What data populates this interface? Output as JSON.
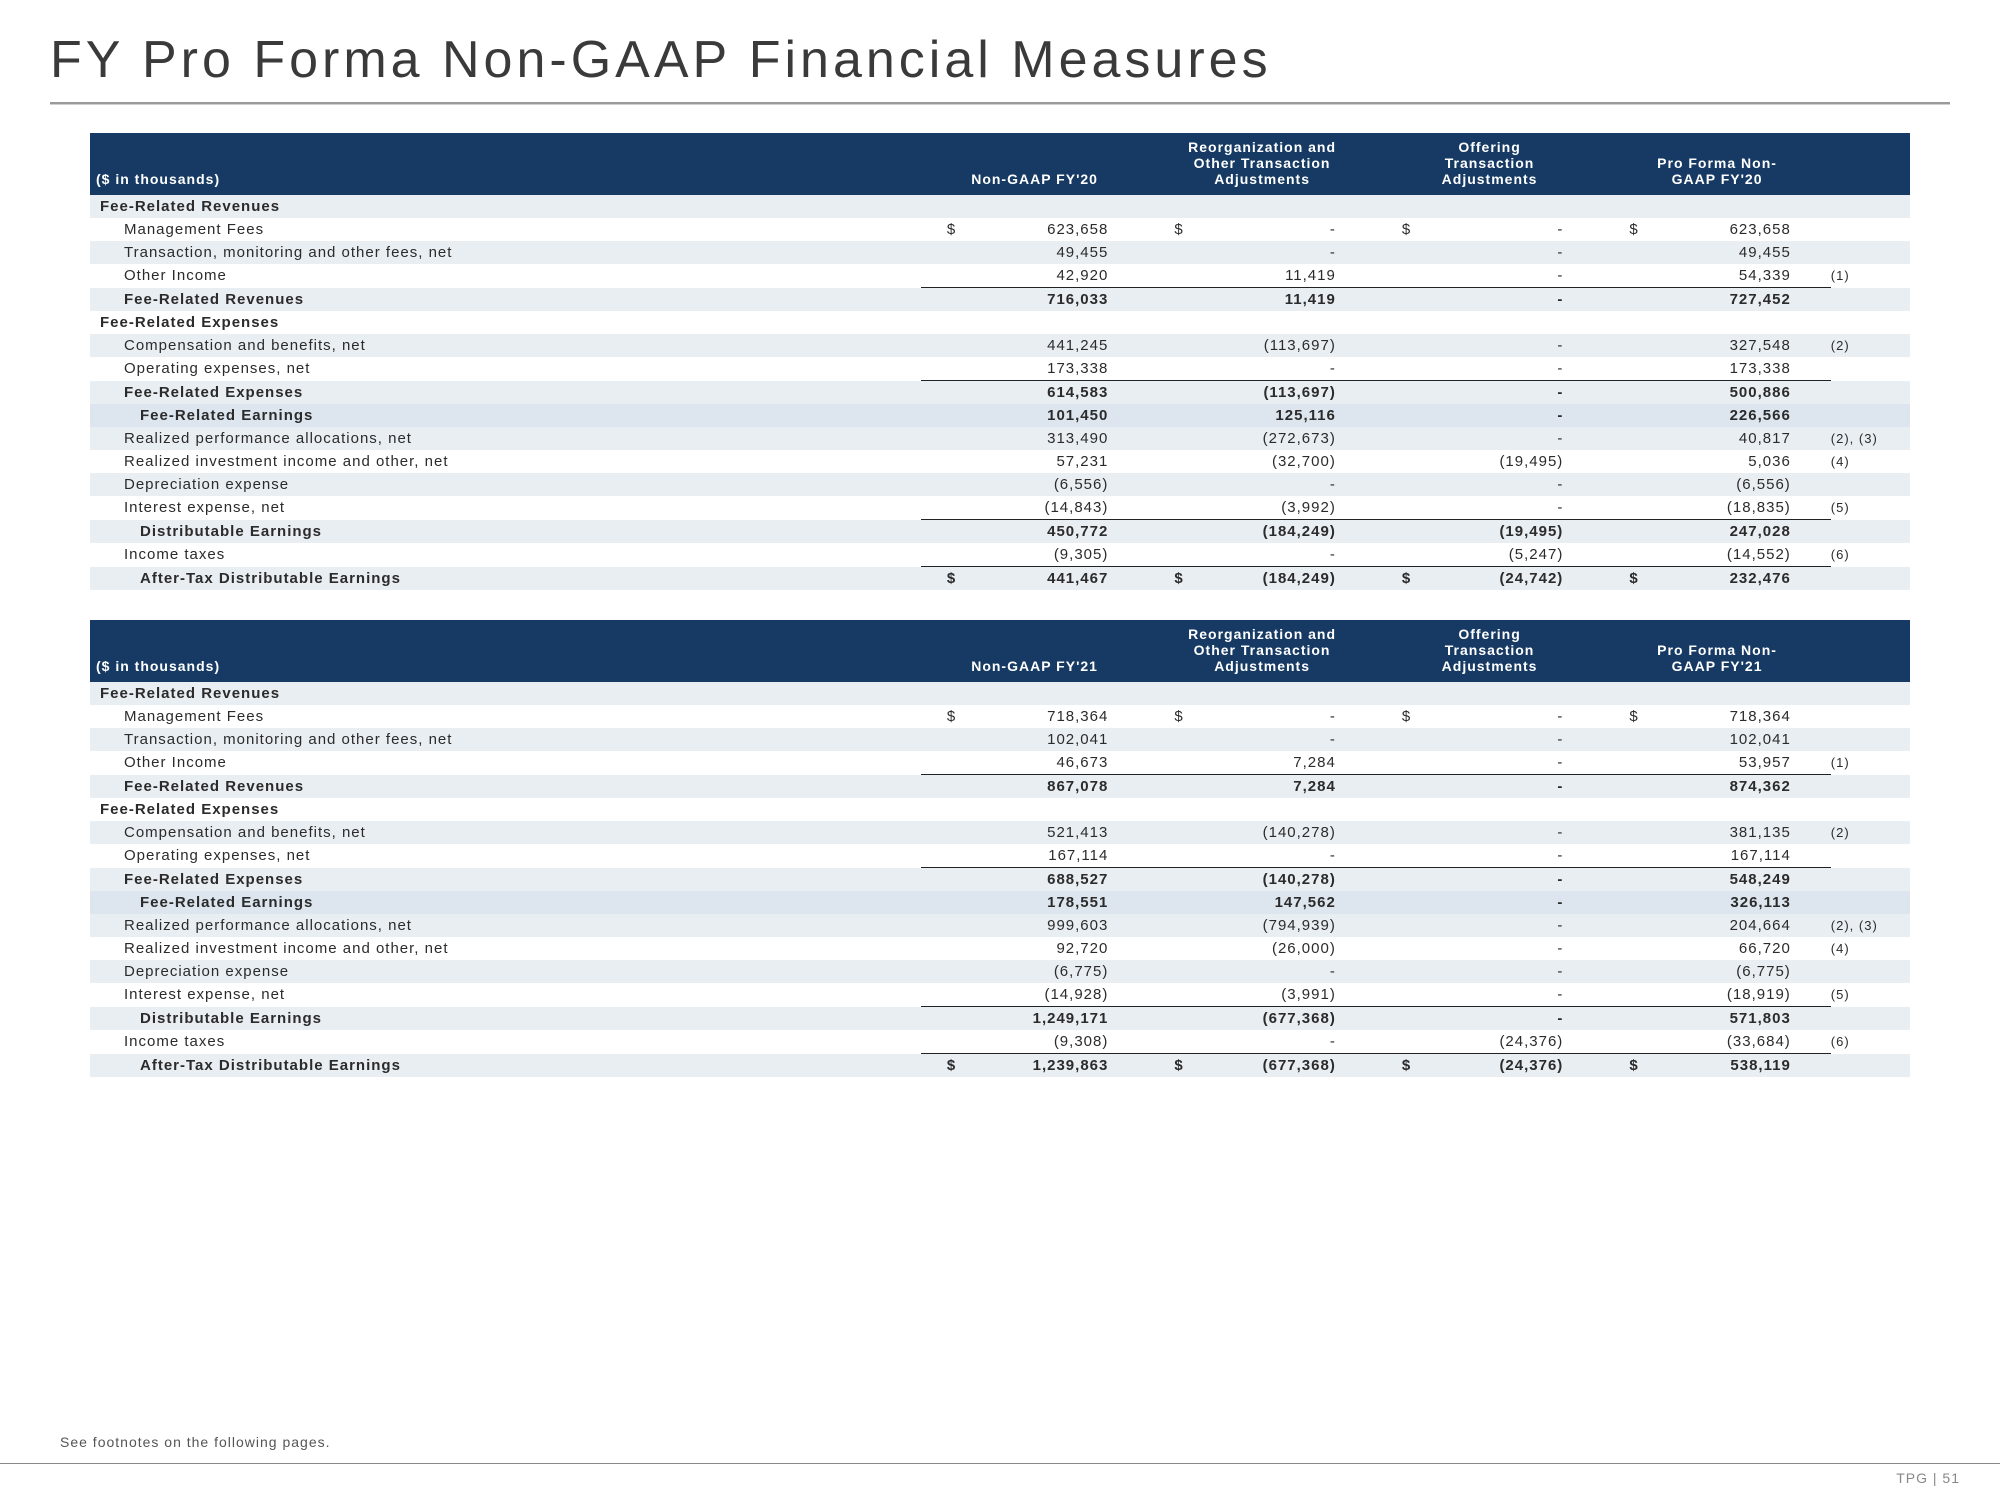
{
  "title": "FY Pro Forma Non-GAAP Financial Measures",
  "footnote": "See footnotes on the following pages.",
  "pagenum": "TPG | 51",
  "cols": {
    "unit": "($ in thousands)",
    "c1a": "Non-GAAP FY'20",
    "c1b": "Non-GAAP FY'21",
    "c2l1": "Reorganization and",
    "c2l2": "Other Transaction",
    "c2l3": "Adjustments",
    "c3l1": "Offering",
    "c3l2": "Transaction",
    "c3l3": "Adjustments",
    "c4a": "Pro Forma Non-",
    "c4a2": "GAAP FY'20",
    "c4b": "Pro Forma Non-",
    "c4b2": "GAAP FY'21"
  },
  "t1": {
    "sec1": "Fee-Related Revenues",
    "r1": {
      "l": "Management Fees",
      "a": "623,658",
      "b": "-",
      "c": "-",
      "d": "623,658",
      "sym": "$"
    },
    "r2": {
      "l": "Transaction, monitoring and other fees, net",
      "a": "49,455",
      "b": "-",
      "c": "-",
      "d": "49,455"
    },
    "r3": {
      "l": "Other Income",
      "a": "42,920",
      "b": "11,419",
      "c": "-",
      "d": "54,339",
      "n": "(1)"
    },
    "r4": {
      "l": "Fee-Related Revenues",
      "a": "716,033",
      "b": "11,419",
      "c": "-",
      "d": "727,452"
    },
    "sec2": "Fee-Related Expenses",
    "r5": {
      "l": "Compensation and benefits, net",
      "a": "441,245",
      "b": "(113,697)",
      "c": "-",
      "d": "327,548",
      "n": "(2)"
    },
    "r6": {
      "l": "Operating expenses, net",
      "a": "173,338",
      "b": "-",
      "c": "-",
      "d": "173,338"
    },
    "r7": {
      "l": "Fee-Related Expenses",
      "a": "614,583",
      "b": "(113,697)",
      "c": "-",
      "d": "500,886"
    },
    "r8": {
      "l": "Fee-Related Earnings",
      "a": "101,450",
      "b": "125,116",
      "c": "-",
      "d": "226,566"
    },
    "r9": {
      "l": "Realized performance allocations, net",
      "a": "313,490",
      "b": "(272,673)",
      "c": "-",
      "d": "40,817",
      "n": "(2), (3)"
    },
    "r10": {
      "l": "Realized investment income and other, net",
      "a": "57,231",
      "b": "(32,700)",
      "c": "(19,495)",
      "d": "5,036",
      "n": "(4)"
    },
    "r11": {
      "l": "Depreciation expense",
      "a": "(6,556)",
      "b": "-",
      "c": "-",
      "d": "(6,556)"
    },
    "r12": {
      "l": "Interest expense, net",
      "a": "(14,843)",
      "b": "(3,992)",
      "c": "-",
      "d": "(18,835)",
      "n": "(5)"
    },
    "r13": {
      "l": "Distributable Earnings",
      "a": "450,772",
      "b": "(184,249)",
      "c": "(19,495)",
      "d": "247,028"
    },
    "r14": {
      "l": "Income taxes",
      "a": "(9,305)",
      "b": "-",
      "c": "(5,247)",
      "d": "(14,552)",
      "n": "(6)"
    },
    "r15": {
      "l": "After-Tax Distributable Earnings",
      "a": "441,467",
      "b": "(184,249)",
      "c": "(24,742)",
      "d": "232,476",
      "sym": "$"
    }
  },
  "t2": {
    "sec1": "Fee-Related Revenues",
    "r1": {
      "l": "Management Fees",
      "a": "718,364",
      "b": "-",
      "c": "-",
      "d": "718,364",
      "sym": "$"
    },
    "r2": {
      "l": "Transaction, monitoring and other fees, net",
      "a": "102,041",
      "b": "-",
      "c": "-",
      "d": "102,041"
    },
    "r3": {
      "l": "Other Income",
      "a": "46,673",
      "b": "7,284",
      "c": "-",
      "d": "53,957",
      "n": "(1)"
    },
    "r4": {
      "l": "Fee-Related Revenues",
      "a": "867,078",
      "b": "7,284",
      "c": "-",
      "d": "874,362"
    },
    "sec2": "Fee-Related Expenses",
    "r5": {
      "l": "Compensation and benefits, net",
      "a": "521,413",
      "b": "(140,278)",
      "c": "-",
      "d": "381,135",
      "n": "(2)"
    },
    "r6": {
      "l": "Operating expenses, net",
      "a": "167,114",
      "b": "-",
      "c": "-",
      "d": "167,114"
    },
    "r7": {
      "l": "Fee-Related Expenses",
      "a": "688,527",
      "b": "(140,278)",
      "c": "-",
      "d": "548,249"
    },
    "r8": {
      "l": "Fee-Related Earnings",
      "a": "178,551",
      "b": "147,562",
      "c": "-",
      "d": "326,113"
    },
    "r9": {
      "l": "Realized performance allocations, net",
      "a": "999,603",
      "b": "(794,939)",
      "c": "-",
      "d": "204,664",
      "n": "(2), (3)"
    },
    "r10": {
      "l": "Realized investment income and other, net",
      "a": "92,720",
      "b": "(26,000)",
      "c": "-",
      "d": "66,720",
      "n": "(4)"
    },
    "r11": {
      "l": "Depreciation expense",
      "a": "(6,775)",
      "b": "-",
      "c": "-",
      "d": "(6,775)"
    },
    "r12": {
      "l": "Interest expense, net",
      "a": "(14,928)",
      "b": "(3,991)",
      "c": "-",
      "d": "(18,919)",
      "n": "(5)"
    },
    "r13": {
      "l": "Distributable Earnings",
      "a": "1,249,171",
      "b": "(677,368)",
      "c": "-",
      "d": "571,803"
    },
    "r14": {
      "l": "Income taxes",
      "a": "(9,308)",
      "b": "-",
      "c": "(24,376)",
      "d": "(33,684)",
      "n": "(6)"
    },
    "r15": {
      "l": "After-Tax Distributable Earnings",
      "a": "1,239,863",
      "b": "(677,368)",
      "c": "(24,376)",
      "d": "538,119",
      "sym": "$"
    }
  }
}
